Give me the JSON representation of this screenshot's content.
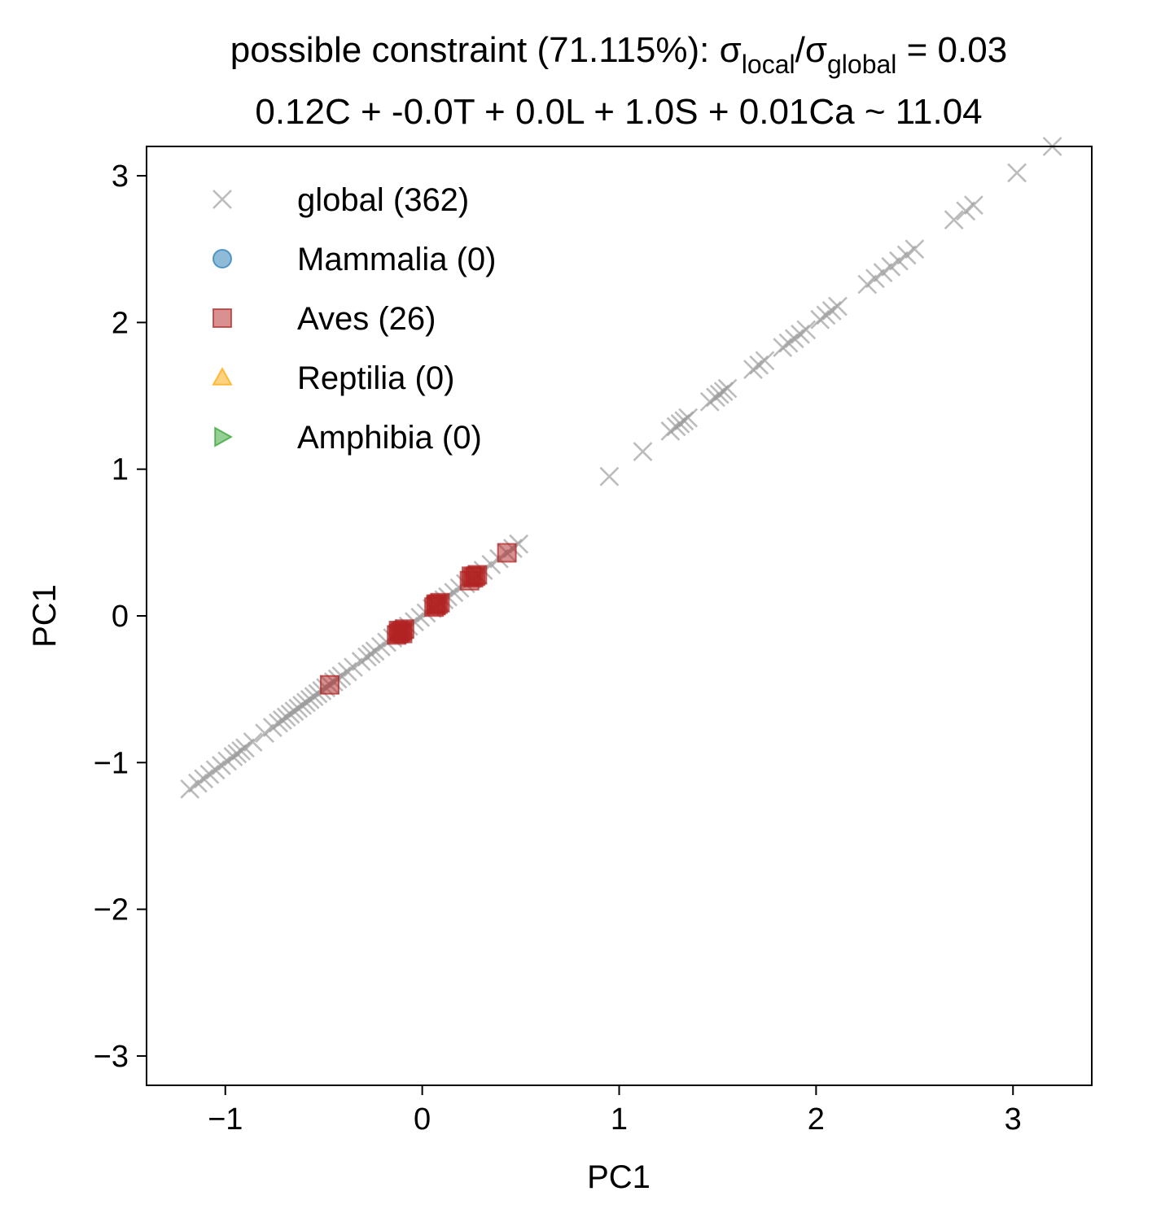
{
  "chart_data": {
    "type": "scatter",
    "title": {
      "prefix": "possible constraint (71.115%): σ",
      "sub1": "local",
      "mid": "/σ",
      "sub2": "global",
      "suffix": " = 0.03",
      "line2": "0.12C + -0.0T + 0.0L + 1.0S + 0.01Ca ~ 11.04"
    },
    "xlabel": "PC1",
    "ylabel": "PC1",
    "xlim": [
      -1.4,
      3.4
    ],
    "ylim": [
      -3.2,
      3.2
    ],
    "xticks": [
      {
        "value": -1,
        "label": "−1"
      },
      {
        "value": 0,
        "label": "0"
      },
      {
        "value": 1,
        "label": "1"
      },
      {
        "value": 2,
        "label": "2"
      },
      {
        "value": 3,
        "label": "3"
      }
    ],
    "yticks": [
      {
        "value": 3,
        "label": "3"
      },
      {
        "value": 2,
        "label": "2"
      },
      {
        "value": 1,
        "label": "1"
      },
      {
        "value": 0,
        "label": "0"
      },
      {
        "value": -1,
        "label": "−1"
      },
      {
        "value": -2,
        "label": "−2"
      },
      {
        "value": -3,
        "label": "−3"
      }
    ],
    "grid": false,
    "legend_position": "top-left",
    "series": [
      {
        "name": "global (362)",
        "marker": "x",
        "color": "#999999",
        "points": [
          [
            -1.18,
            -1.18
          ],
          [
            -1.14,
            -1.14
          ],
          [
            -1.11,
            -1.11
          ],
          [
            -1.08,
            -1.08
          ],
          [
            -1.05,
            -1.05
          ],
          [
            -1.02,
            -1.02
          ],
          [
            -0.99,
            -0.99
          ],
          [
            -0.96,
            -0.96
          ],
          [
            -0.94,
            -0.94
          ],
          [
            -0.92,
            -0.92
          ],
          [
            -0.9,
            -0.9
          ],
          [
            -0.86,
            -0.86
          ],
          [
            -0.8,
            -0.8
          ],
          [
            -0.76,
            -0.76
          ],
          [
            -0.73,
            -0.73
          ],
          [
            -0.71,
            -0.71
          ],
          [
            -0.69,
            -0.69
          ],
          [
            -0.67,
            -0.67
          ],
          [
            -0.65,
            -0.65
          ],
          [
            -0.63,
            -0.63
          ],
          [
            -0.61,
            -0.61
          ],
          [
            -0.59,
            -0.59
          ],
          [
            -0.57,
            -0.57
          ],
          [
            -0.55,
            -0.55
          ],
          [
            -0.53,
            -0.53
          ],
          [
            -0.51,
            -0.51
          ],
          [
            -0.49,
            -0.49
          ],
          [
            -0.47,
            -0.47
          ],
          [
            -0.45,
            -0.45
          ],
          [
            -0.43,
            -0.43
          ],
          [
            -0.41,
            -0.41
          ],
          [
            -0.38,
            -0.38
          ],
          [
            -0.35,
            -0.35
          ],
          [
            -0.31,
            -0.31
          ],
          [
            -0.28,
            -0.28
          ],
          [
            -0.26,
            -0.26
          ],
          [
            -0.24,
            -0.24
          ],
          [
            -0.21,
            -0.21
          ],
          [
            -0.18,
            -0.18
          ],
          [
            -0.15,
            -0.15
          ],
          [
            -0.13,
            -0.13
          ],
          [
            -0.11,
            -0.11
          ],
          [
            -0.09,
            -0.09
          ],
          [
            -0.07,
            -0.07
          ],
          [
            -0.04,
            -0.04
          ],
          [
            -0.01,
            -0.01
          ],
          [
            0.02,
            0.02
          ],
          [
            0.05,
            0.05
          ],
          [
            0.07,
            0.07
          ],
          [
            0.09,
            0.09
          ],
          [
            0.11,
            0.11
          ],
          [
            0.13,
            0.13
          ],
          [
            0.16,
            0.16
          ],
          [
            0.19,
            0.19
          ],
          [
            0.22,
            0.22
          ],
          [
            0.25,
            0.25
          ],
          [
            0.28,
            0.28
          ],
          [
            0.31,
            0.31
          ],
          [
            0.35,
            0.35
          ],
          [
            0.39,
            0.39
          ],
          [
            0.43,
            0.43
          ],
          [
            0.46,
            0.46
          ],
          [
            0.49,
            0.49
          ],
          [
            0.95,
            0.95
          ],
          [
            1.12,
            1.12
          ],
          [
            1.26,
            1.26
          ],
          [
            1.29,
            1.29
          ],
          [
            1.31,
            1.31
          ],
          [
            1.33,
            1.33
          ],
          [
            1.35,
            1.35
          ],
          [
            1.46,
            1.46
          ],
          [
            1.49,
            1.49
          ],
          [
            1.51,
            1.51
          ],
          [
            1.53,
            1.53
          ],
          [
            1.55,
            1.55
          ],
          [
            1.68,
            1.68
          ],
          [
            1.71,
            1.71
          ],
          [
            1.74,
            1.74
          ],
          [
            1.83,
            1.83
          ],
          [
            1.86,
            1.86
          ],
          [
            1.89,
            1.89
          ],
          [
            1.92,
            1.92
          ],
          [
            1.95,
            1.95
          ],
          [
            2.02,
            2.02
          ],
          [
            2.05,
            2.05
          ],
          [
            2.08,
            2.08
          ],
          [
            2.11,
            2.11
          ],
          [
            2.26,
            2.26
          ],
          [
            2.3,
            2.3
          ],
          [
            2.34,
            2.34
          ],
          [
            2.38,
            2.38
          ],
          [
            2.42,
            2.42
          ],
          [
            2.46,
            2.46
          ],
          [
            2.5,
            2.5
          ],
          [
            2.7,
            2.7
          ],
          [
            2.76,
            2.76
          ],
          [
            2.8,
            2.8
          ],
          [
            3.02,
            3.02
          ],
          [
            3.2,
            3.2
          ]
        ]
      },
      {
        "name": "Mammalia (0)",
        "marker": "o",
        "color": "#1f77b4",
        "points": []
      },
      {
        "name": "Aves (26)",
        "marker": "s",
        "color": "#b22222",
        "points": [
          [
            -0.47,
            -0.47
          ],
          [
            -0.13,
            -0.13
          ],
          [
            -0.12,
            -0.12
          ],
          [
            -0.11,
            -0.11
          ],
          [
            -0.1,
            -0.1
          ],
          [
            -0.09,
            -0.09
          ],
          [
            -0.12,
            -0.1
          ],
          [
            -0.1,
            -0.12
          ],
          [
            0.06,
            0.06
          ],
          [
            0.07,
            0.07
          ],
          [
            0.08,
            0.08
          ],
          [
            0.09,
            0.09
          ],
          [
            0.07,
            0.08
          ],
          [
            0.24,
            0.24
          ],
          [
            0.26,
            0.26
          ],
          [
            0.27,
            0.27
          ],
          [
            0.28,
            0.28
          ],
          [
            0.25,
            0.27
          ],
          [
            0.43,
            0.43
          ]
        ]
      },
      {
        "name": "Reptilia (0)",
        "marker": "^",
        "color": "#ffa500",
        "points": []
      },
      {
        "name": "Amphibia (0)",
        "marker": ">",
        "color": "#2ca02c",
        "points": []
      }
    ]
  }
}
